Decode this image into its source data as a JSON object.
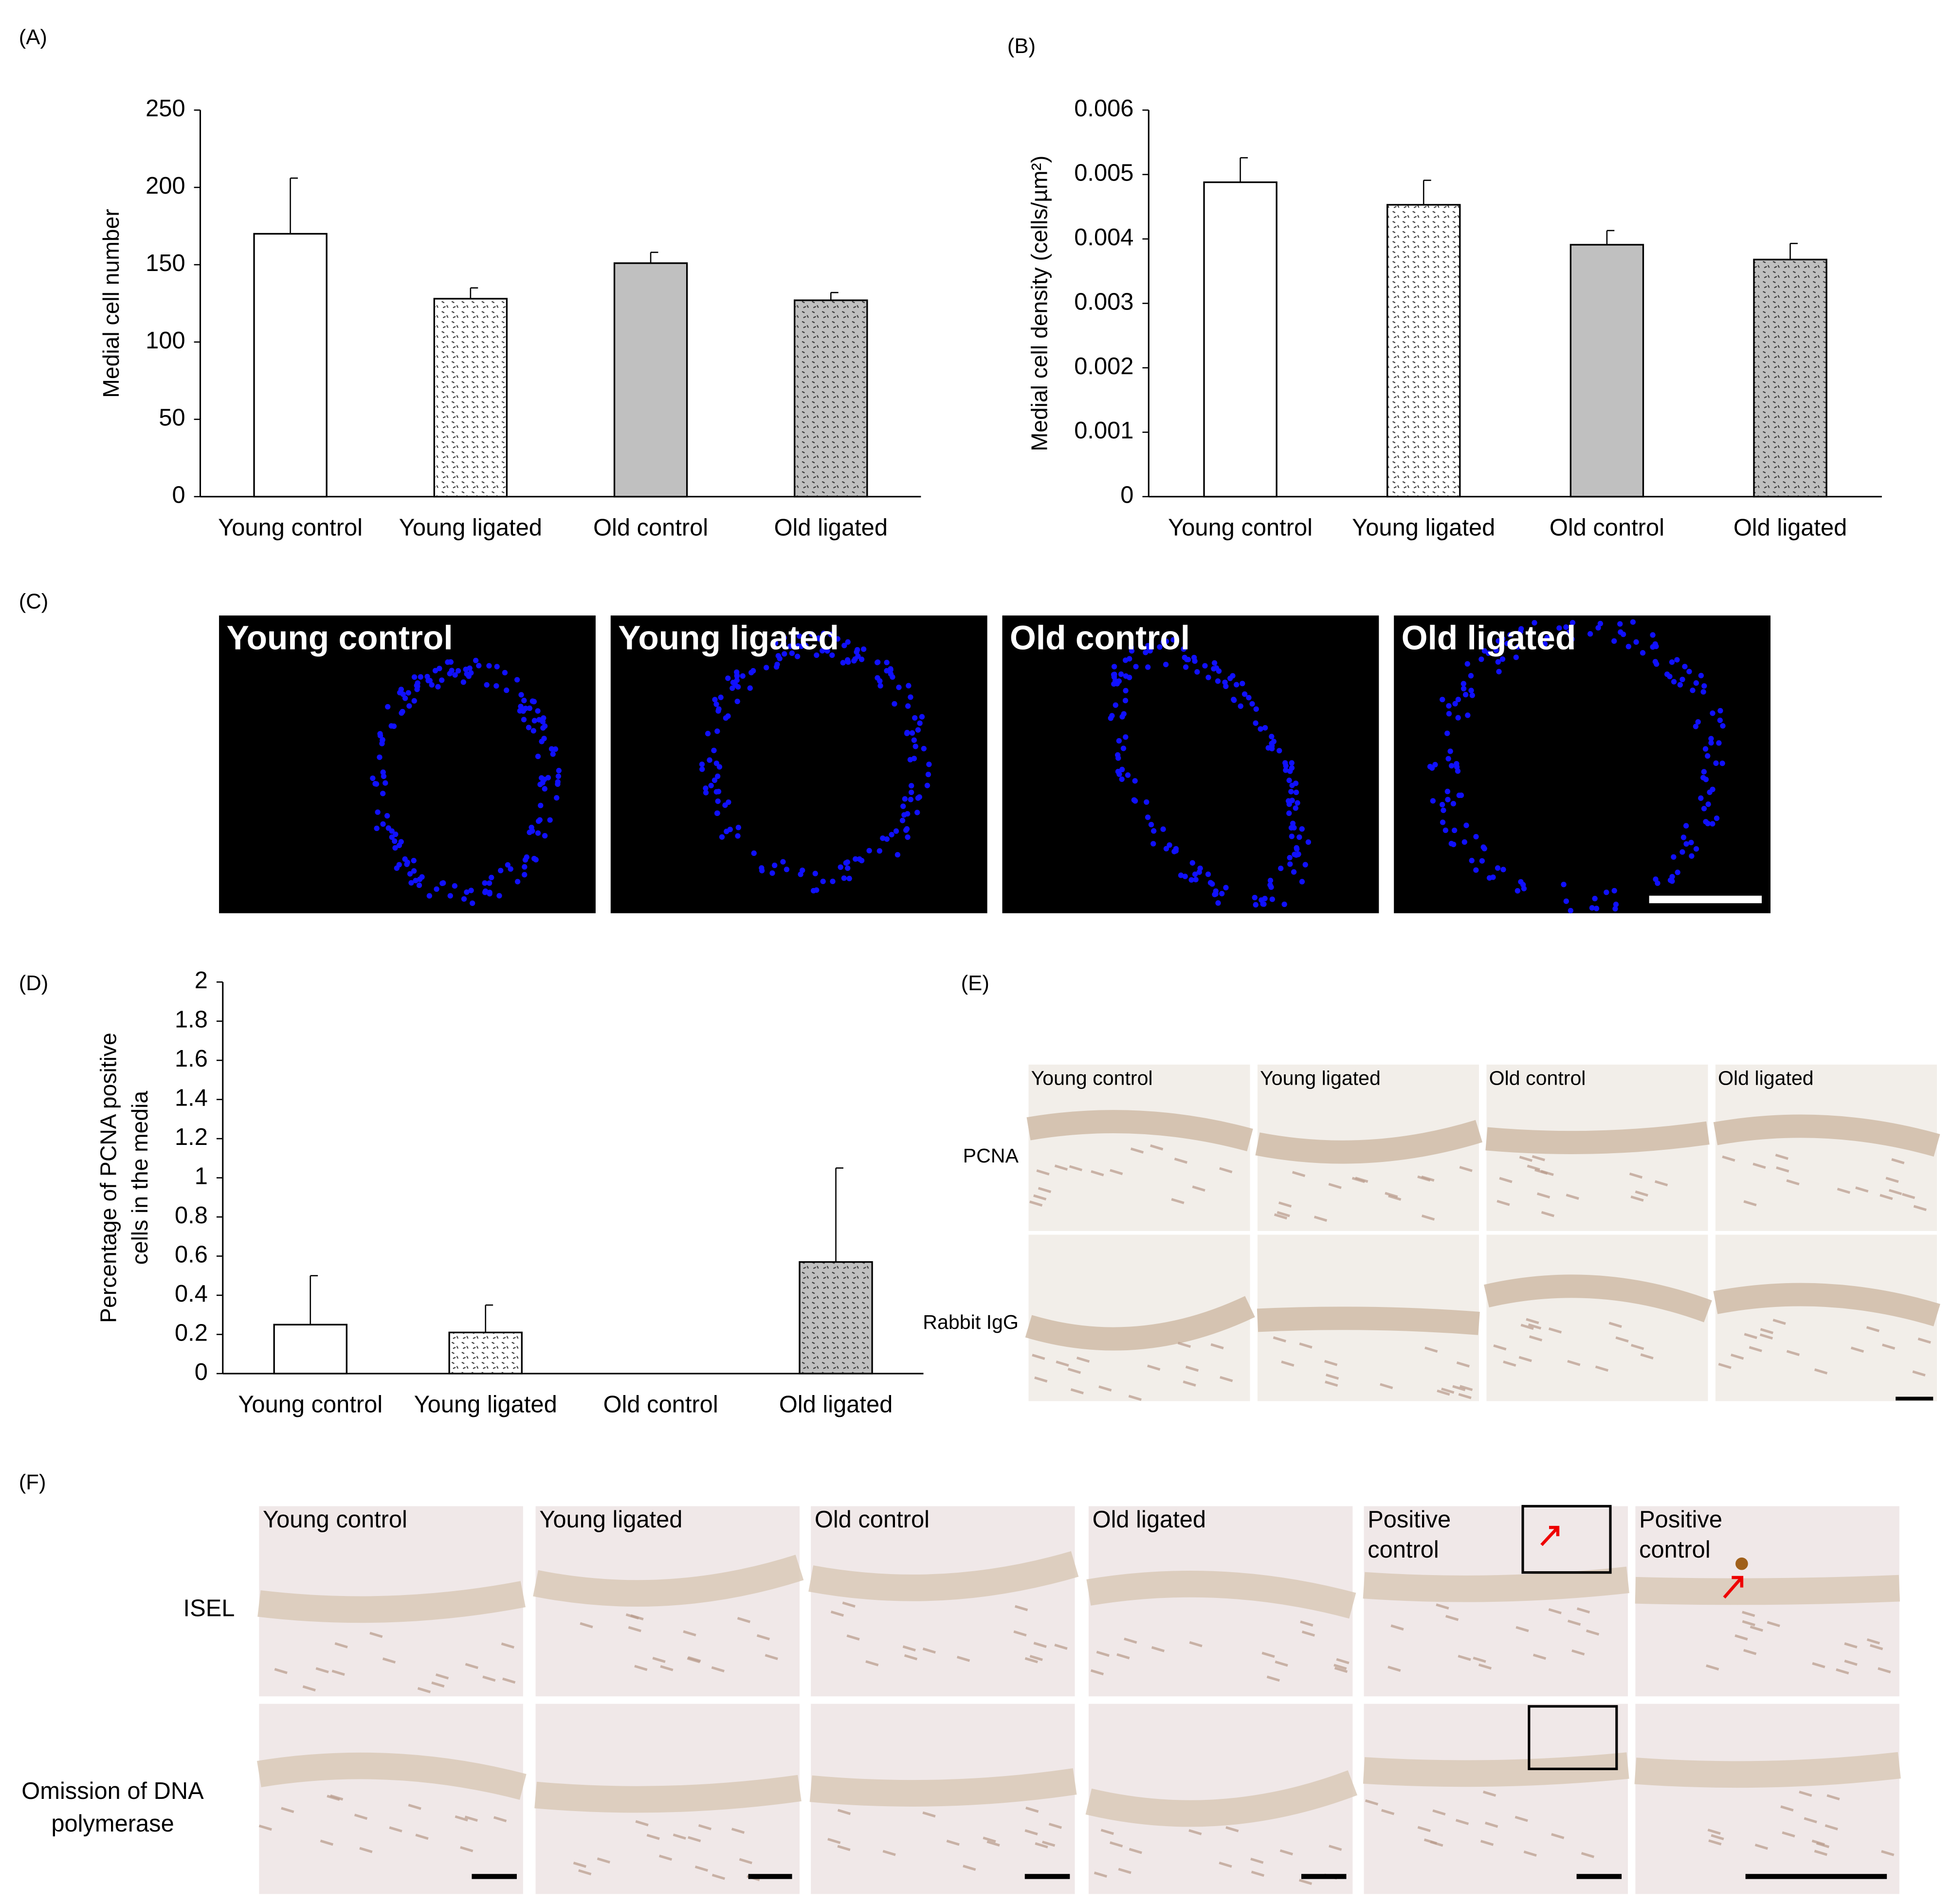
{
  "chart_data": [
    {
      "type": "bar",
      "ylabel": [
        "Medial cell number"
      ],
      "categories": [
        "Young control",
        "Young ligated",
        "Old control",
        "Old ligated"
      ],
      "values": [
        170,
        128,
        151,
        127
      ],
      "errors": [
        36,
        7,
        7,
        5
      ],
      "colors": [
        "#ffffff",
        "#ffffff",
        "#c0c0c0",
        "#c0c0c0"
      ],
      "hatch": [
        false,
        true,
        false,
        true
      ],
      "ylim": [
        0,
        250
      ],
      "yticks": [
        0,
        50,
        100,
        150,
        200,
        250
      ],
      "grid": false
    },
    {
      "type": "bar",
      "ylabel": [
        "Medial cell density (cells/µm²)"
      ],
      "categories": [
        "Young control",
        "Young ligated",
        "Old control",
        "Old ligated"
      ],
      "values": [
        0.00488,
        0.00453,
        0.00391,
        0.00368
      ],
      "errors": [
        0.00038,
        0.00038,
        0.00022,
        0.00025
      ],
      "colors": [
        "#ffffff",
        "#ffffff",
        "#c0c0c0",
        "#c0c0c0"
      ],
      "hatch": [
        false,
        true,
        false,
        true
      ],
      "ylim": [
        0,
        0.006
      ],
      "yticks": [
        0,
        0.001,
        0.002,
        0.003,
        0.004,
        0.005,
        0.006
      ],
      "grid": false
    },
    {
      "type": "bar",
      "ylabel": [
        "Percentage of PCNA positive",
        "cells in the media"
      ],
      "categories": [
        "Young control",
        "Young ligated",
        "Old control",
        "Old ligated"
      ],
      "values": [
        0.25,
        0.21,
        0,
        0.57
      ],
      "errors": [
        0.25,
        0.14,
        0,
        0.48
      ],
      "colors": [
        "#ffffff",
        "#ffffff",
        "#c0c0c0",
        "#c0c0c0"
      ],
      "hatch": [
        false,
        true,
        false,
        true
      ],
      "ylim": [
        0,
        2
      ],
      "yticks": [
        0,
        0.2,
        0.4,
        0.6,
        0.8,
        1,
        1.2,
        1.4,
        1.6,
        1.8,
        2
      ],
      "grid": false
    }
  ],
  "panel_labels": [
    "(A)",
    "(B)",
    "(C)",
    "(D)",
    "(E)",
    "(F)"
  ],
  "panel_c": {
    "labels": [
      "Young control",
      "Young ligated",
      "Old control",
      "Old ligated"
    ]
  },
  "panel_e": {
    "columns": [
      "Young control",
      "Young ligated",
      "Old control",
      "Old ligated"
    ],
    "rows": [
      "PCNA",
      "Rabbit IgG"
    ]
  },
  "panel_f": {
    "columns": [
      [
        "Young control"
      ],
      [
        "Young ligated"
      ],
      [
        "Old control"
      ],
      [
        "Old ligated"
      ],
      [
        "Positive",
        "control"
      ],
      [
        "Positive",
        "control"
      ]
    ],
    "rows": [
      [
        "ISEL"
      ],
      [
        "Omission of DNA",
        "polymerase"
      ]
    ]
  }
}
